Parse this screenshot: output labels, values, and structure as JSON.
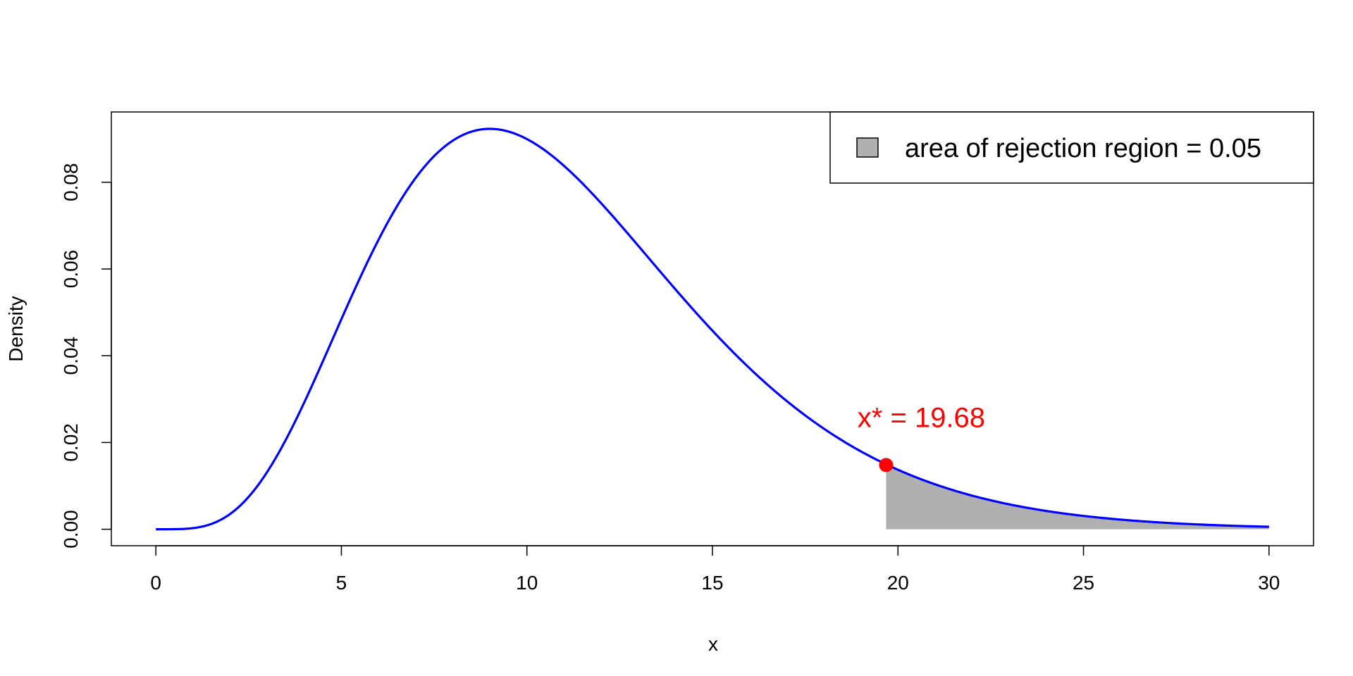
{
  "chart_data": {
    "type": "area",
    "title": "",
    "xlabel": "x",
    "ylabel": "Density",
    "xlim": [
      -1.2,
      31.2
    ],
    "ylim": [
      -0.0038,
      0.0962
    ],
    "x_ticks": [
      0,
      5,
      10,
      15,
      20,
      25,
      30
    ],
    "x_tick_labels": [
      "0",
      "5",
      "10",
      "15",
      "20",
      "25",
      "30"
    ],
    "y_ticks": [
      0.0,
      0.02,
      0.04,
      0.06,
      0.08
    ],
    "y_tick_labels": [
      "0.00",
      "0.02",
      "0.04",
      "0.06",
      "0.08"
    ],
    "grid": false,
    "curve": {
      "distribution": "chi-squared",
      "df": 11,
      "x_range": [
        0,
        30
      ],
      "color": "#0000ff"
    },
    "rejection_region": {
      "x_from": 19.68,
      "x_to": 30,
      "area": 0.05,
      "fill_color": "#b0b0b0"
    },
    "critical_point": {
      "x": 19.68,
      "y": 0.0148,
      "label": "x* = 19.68",
      "color": "#ff0000"
    },
    "legend": {
      "position": "top-right",
      "entries": [
        {
          "label": "area of rejection region = 0.05",
          "fill_color": "#b0b0b0"
        }
      ]
    }
  }
}
